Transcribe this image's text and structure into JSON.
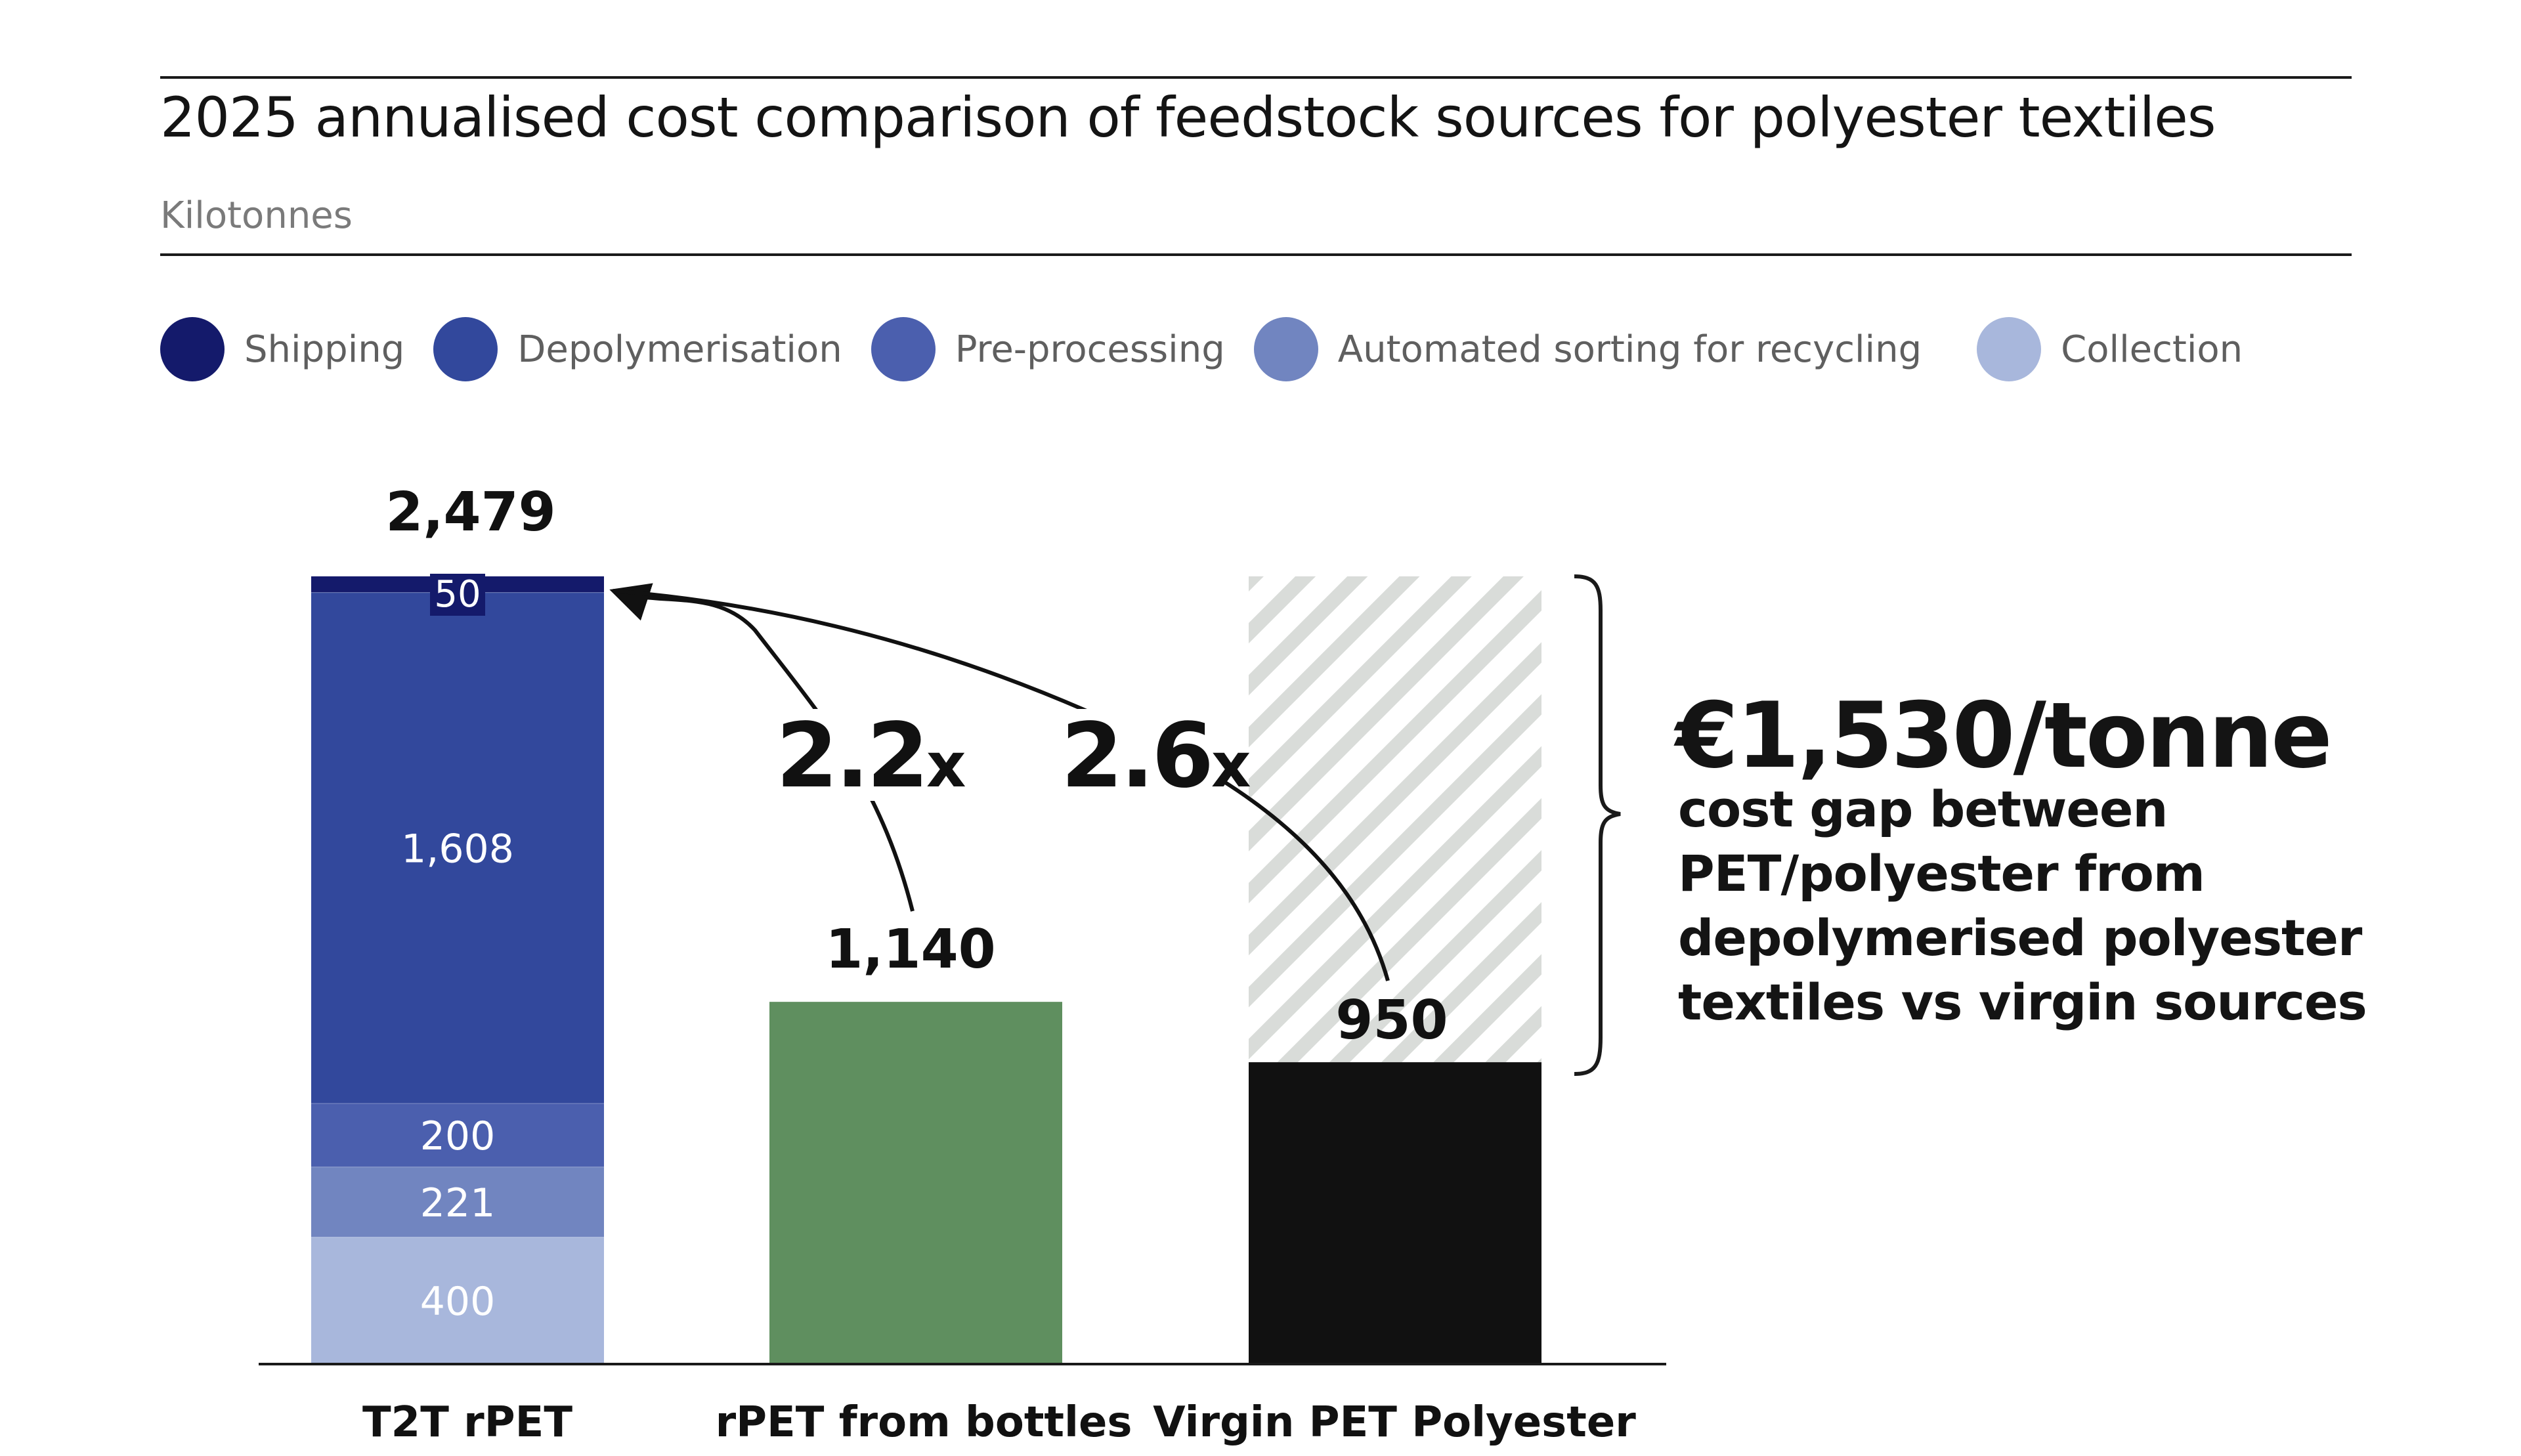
{
  "colors": {
    "shipping": "#141a6b",
    "depolymerisation": "#32489c",
    "preprocessing": "#4b5fae",
    "sorting": "#7185c0",
    "collection": "#a8b7dc",
    "rpet_bottles": "#5f8f5f",
    "virgin": "#111111",
    "hatch": "#d9dcd9"
  },
  "legend": [
    {
      "label": "Shipping",
      "color": "#141a6b"
    },
    {
      "label": "Depolymerisation",
      "color": "#32489c"
    },
    {
      "label": "Pre-processing",
      "color": "#4b5fae"
    },
    {
      "label": "Automated sorting for recycling",
      "color": "#7185c0"
    },
    {
      "label": "Collection",
      "color": "#a8b7dc"
    }
  ],
  "chart_data": {
    "type": "bar",
    "title": "2025 annualised cost comparison of feedstock sources for polyester textiles",
    "subtitle": "Kilotonnes",
    "categories": [
      "T2T rPET",
      "rPET from bottles",
      "Virgin PET Polyester"
    ],
    "stack_order": [
      "Collection",
      "Automated sorting for recycling",
      "Pre-processing",
      "Depolymerisation",
      "Shipping"
    ],
    "t2t_stack": [
      {
        "name": "Collection",
        "value": 400,
        "label": "400"
      },
      {
        "name": "Automated sorting for recycling",
        "value": 221,
        "label": "221"
      },
      {
        "name": "Pre-processing",
        "value": 200,
        "label": "200"
      },
      {
        "name": "Depolymerisation",
        "value": 1608,
        "label": "1,608"
      },
      {
        "name": "Shipping",
        "value": 50,
        "label": "50"
      }
    ],
    "totals": [
      {
        "category": "T2T rPET",
        "value": 2479,
        "label": "2,479"
      },
      {
        "category": "rPET from bottles",
        "value": 1140,
        "label": "1,140"
      },
      {
        "category": "Virgin PET Polyester",
        "value": 950,
        "label": "950"
      }
    ],
    "virgin_gap_top": 2479,
    "multipliers": [
      {
        "from": "rPET from bottles",
        "to": "T2T rPET",
        "value": "2.2",
        "suffix": "x"
      },
      {
        "from": "Virgin PET Polyester",
        "to": "T2T rPET",
        "value": "2.6",
        "suffix": "x"
      }
    ],
    "ylim": [
      0,
      2479
    ],
    "xlabel": "",
    "ylabel": ""
  },
  "annotation": {
    "gap_value": "€1,530/tonne",
    "gap_description": "cost gap between PET/polyester from depolymerised polyester textiles vs virgin sources"
  }
}
